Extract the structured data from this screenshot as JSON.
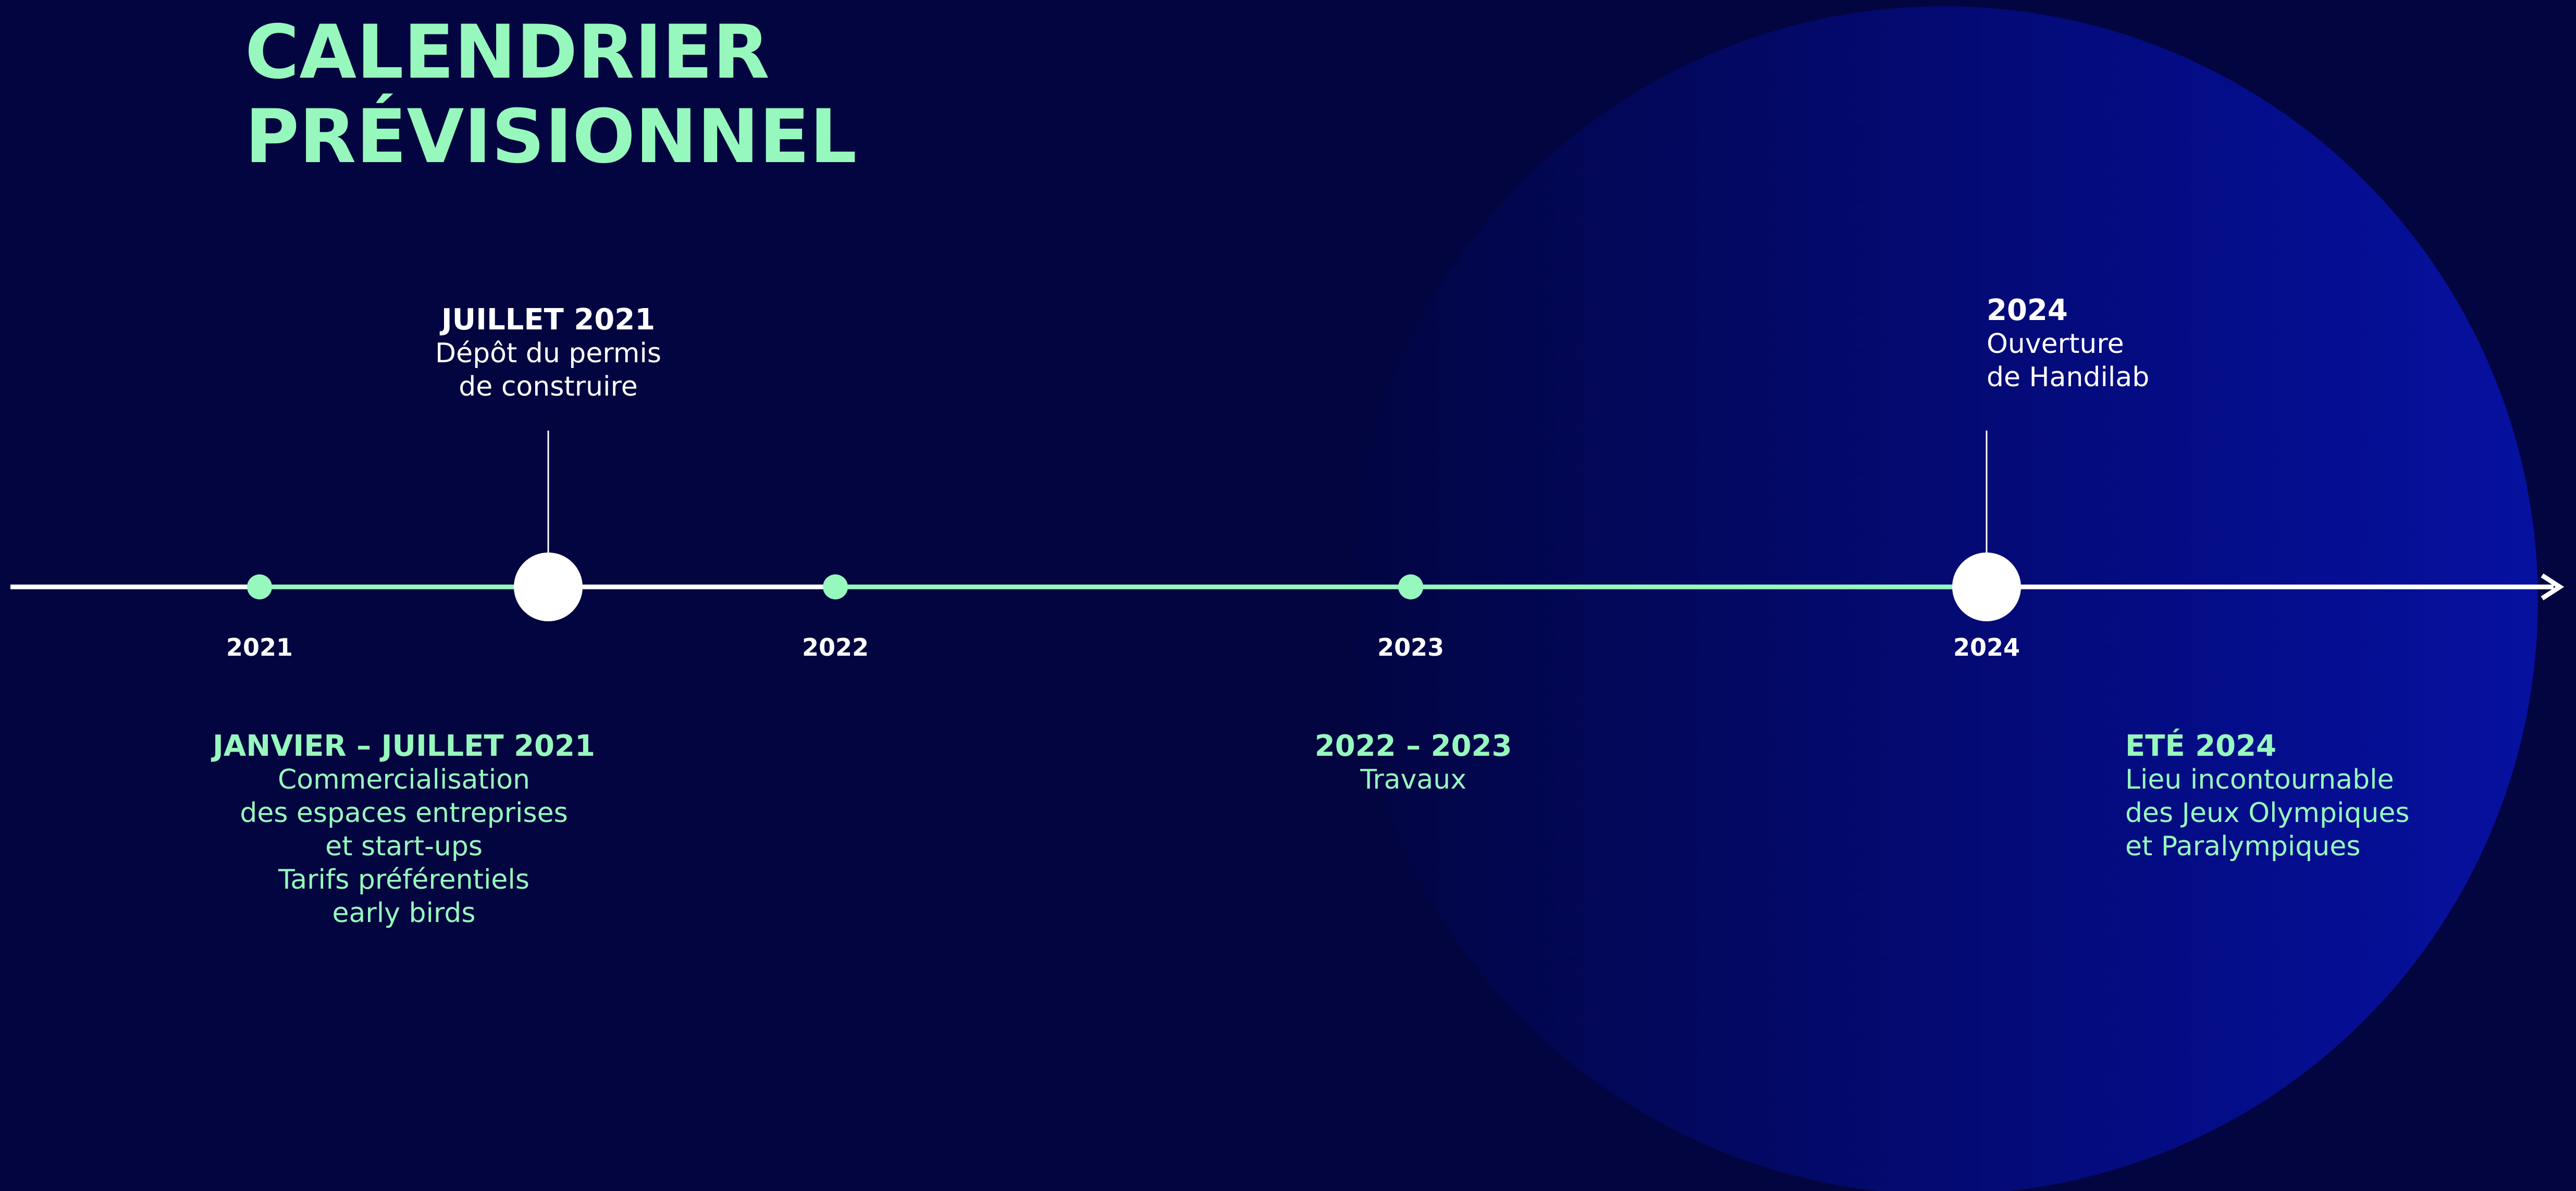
{
  "title": {
    "line1": "CALENDRIER",
    "line2": "PRÉVISIONNEL"
  },
  "colors": {
    "background": "#020540",
    "accent": "#97f8bd",
    "text": "#ffffff"
  },
  "timeline": {
    "years": [
      "2021",
      "2022",
      "2023",
      "2024"
    ],
    "milestones": [
      {
        "head": "JUILLET 2021",
        "lines": [
          "Dépôt du permis",
          "de construire"
        ]
      },
      {
        "head": "2024",
        "lines": [
          "Ouverture",
          "de Handilab"
        ]
      }
    ],
    "phases": [
      {
        "head": "JANVIER – JUILLET 2021",
        "lines": [
          "Commercialisation",
          "des espaces entreprises",
          "et start-ups",
          "Tarifs préférentiels",
          "early birds"
        ]
      },
      {
        "head": "2022 – 2023",
        "lines": [
          "Travaux"
        ]
      },
      {
        "head": "ETÉ 2024",
        "lines": [
          "Lieu incontournable",
          "des Jeux Olympiques",
          "et Paralympiques"
        ]
      }
    ]
  }
}
